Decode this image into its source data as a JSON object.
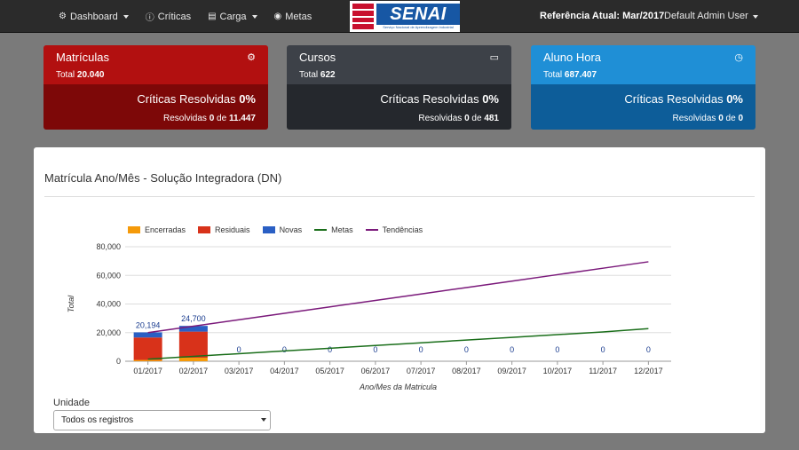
{
  "navbar": {
    "items": [
      {
        "label": "Dashboard",
        "icon": "tachometer-icon",
        "glyph": "⚙",
        "has_caret": true
      },
      {
        "label": "Críticas",
        "icon": "info-icon",
        "glyph": "ⓘ",
        "has_caret": false
      },
      {
        "label": "Carga",
        "icon": "folder-open-icon",
        "glyph": "▤",
        "has_caret": true
      },
      {
        "label": "Metas",
        "icon": "target-icon",
        "glyph": "◉",
        "has_caret": false
      }
    ],
    "logo_word": "SENAI",
    "logo_subtitle": "Serviço Nacional de Aprendizagem Industrial",
    "reference": "Referência Atual: Mar/2017",
    "user": "Default Admin User"
  },
  "cards": [
    {
      "title": "Matrículas",
      "total_label": "Total",
      "total_value": "20.040",
      "icon": "cogs-icon",
      "glyph": "⚙",
      "crit_label": "Críticas Resolvidas",
      "crit_value": "0%",
      "res_label": "Resolvidas",
      "res_done": "0",
      "res_of": "de",
      "res_total": "11.447"
    },
    {
      "title": "Cursos",
      "total_label": "Total",
      "total_value": "622",
      "icon": "book-icon",
      "glyph": "▭",
      "crit_label": "Críticas Resolvidas",
      "crit_value": "0%",
      "res_label": "Resolvidas",
      "res_done": "0",
      "res_of": "de",
      "res_total": "481"
    },
    {
      "title": "Aluno Hora",
      "total_label": "Total",
      "total_value": "687.407",
      "icon": "clock-icon",
      "glyph": "◷",
      "crit_label": "Críticas Resolvidas",
      "crit_value": "0%",
      "res_label": "Resolvidas",
      "res_done": "0",
      "res_of": "de",
      "res_total": "0"
    }
  ],
  "panel": {
    "title": "Matrícula Ano/Mês - Solução Integradora (DN)",
    "unit_label": "Unidade",
    "unit_value": "Todos os registros"
  },
  "colors": {
    "encerradas": "#f59a0a",
    "residuais": "#d8321a",
    "novas": "#2a5fc4",
    "metas": "#1a6e1a",
    "tendencias": "#7b1a7b"
  },
  "chart_data": {
    "type": "bar",
    "xlabel": "Ano/Mes da Matricula",
    "ylabel": "Total",
    "ylim": [
      0,
      80000
    ],
    "yticks": [
      0,
      20000,
      40000,
      60000,
      80000
    ],
    "ytick_labels": [
      "0",
      "20,000",
      "40,000",
      "60,000",
      "80,000"
    ],
    "categories": [
      "01/2017",
      "02/2017",
      "03/2017",
      "04/2017",
      "05/2017",
      "06/2017",
      "07/2017",
      "08/2017",
      "09/2017",
      "10/2017",
      "11/2017",
      "12/2017"
    ],
    "stacked_series": [
      {
        "name": "Encerradas",
        "values": [
          900,
          2500,
          0,
          0,
          0,
          0,
          0,
          0,
          0,
          0,
          0,
          0
        ]
      },
      {
        "name": "Residuais",
        "values": [
          15700,
          18200,
          0,
          0,
          0,
          0,
          0,
          0,
          0,
          0,
          0,
          0
        ]
      },
      {
        "name": "Novas",
        "values": [
          3594,
          4000,
          0,
          0,
          0,
          0,
          0,
          0,
          0,
          0,
          0,
          0
        ]
      }
    ],
    "bar_labels": [
      "20,194",
      "24,700",
      "0",
      "0",
      "0",
      "0",
      "0",
      "0",
      "0",
      "0",
      "0",
      "0"
    ],
    "line_series": [
      {
        "name": "Metas",
        "values": [
          1500,
          3400,
          5300,
          7200,
          9100,
          11000,
          12900,
          14800,
          16700,
          18600,
          20500,
          22800
        ]
      },
      {
        "name": "Tendências",
        "values": [
          20000,
          24500,
          29000,
          33500,
          38000,
          42500,
          47000,
          51500,
          56000,
          60500,
          65000,
          69500
        ]
      }
    ],
    "legend_position": "top-left",
    "grid": true
  }
}
